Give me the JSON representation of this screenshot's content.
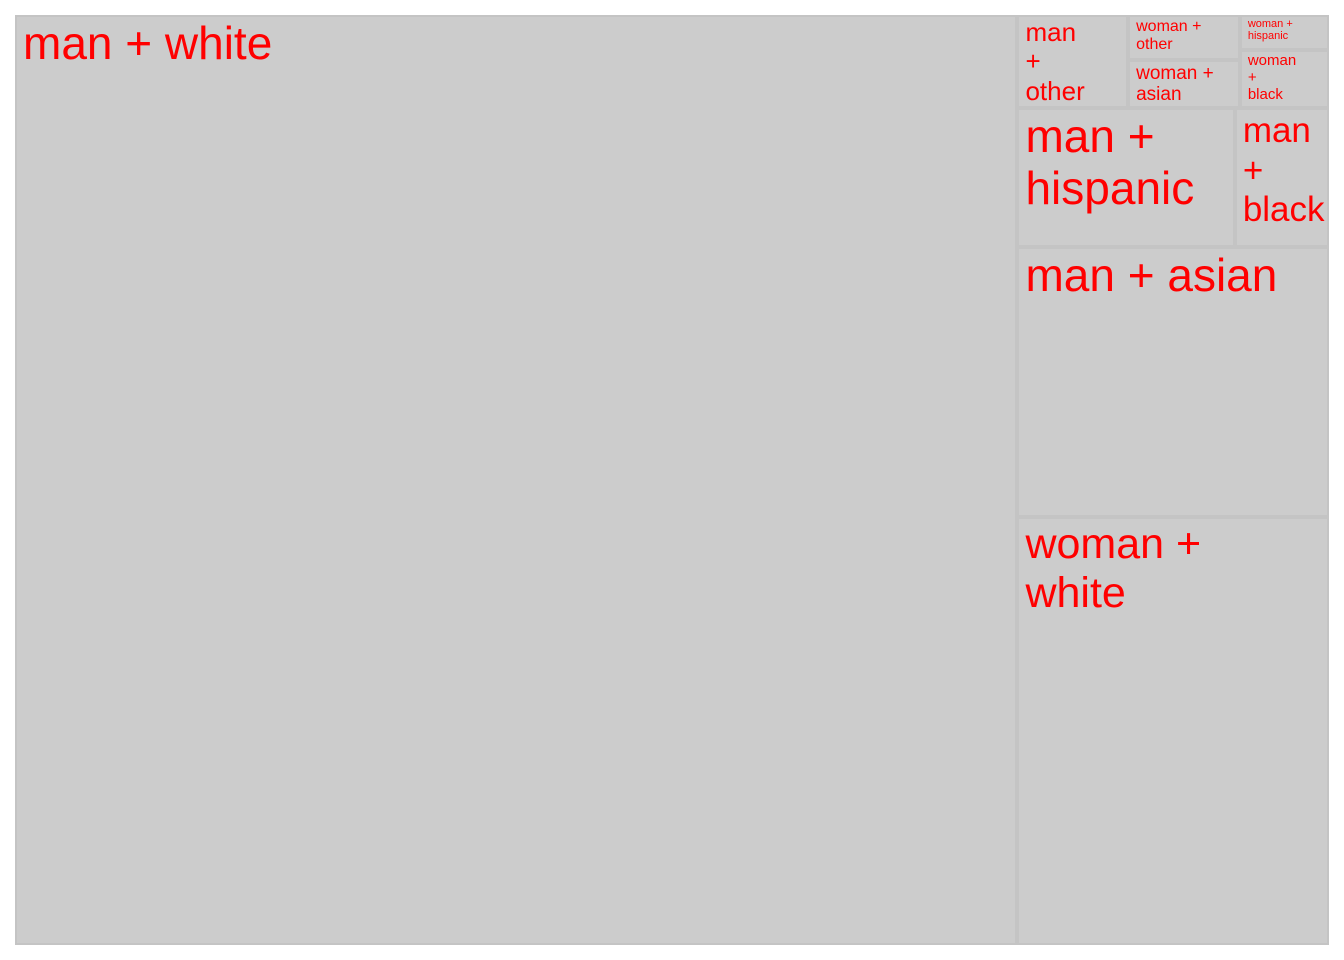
{
  "chart_data": {
    "type": "treemap",
    "title": "",
    "colors": {
      "tile_fill": "#cccccc",
      "tile_border": "#c4c4c4",
      "label": "#ff0000"
    },
    "tiles": [
      {
        "label": "man + white",
        "value": 930
      },
      {
        "label": "woman + white",
        "value": 133
      },
      {
        "label": "man + asian",
        "value": 84
      },
      {
        "label": "man + hispanic",
        "value": 30
      },
      {
        "label": "man + black",
        "value": 13
      },
      {
        "label": "man + other",
        "value": 10.3
      },
      {
        "label": "woman + other",
        "value": 5
      },
      {
        "label": "woman + asian",
        "value": 5.4
      },
      {
        "label": "woman + hispanic",
        "value": 3.1
      },
      {
        "label": "woman + black",
        "value": 5.2
      }
    ]
  }
}
